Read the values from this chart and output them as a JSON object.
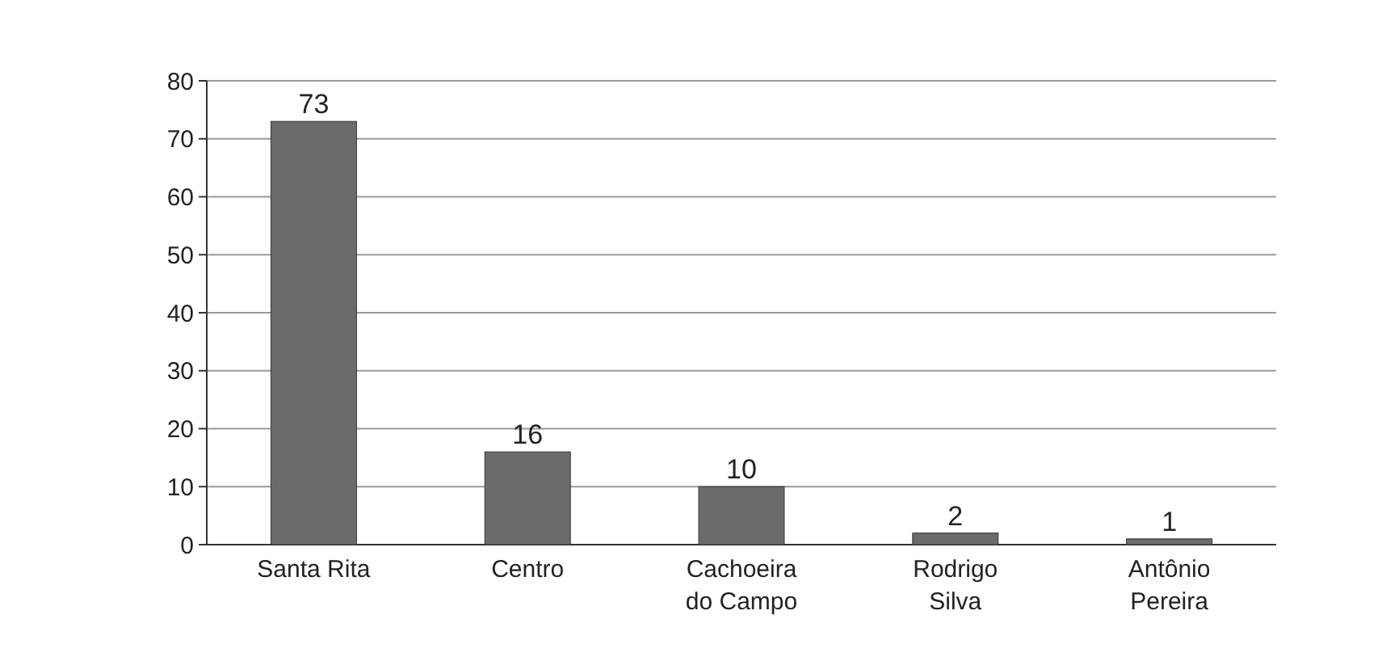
{
  "chart_data": {
    "type": "bar",
    "categories": [
      "Santa Rita",
      "Centro",
      "Cachoeira do Campo",
      "Rodrigo Silva",
      "Antônio Pereira"
    ],
    "values": [
      73,
      16,
      10,
      2,
      1
    ],
    "color": "#6b6b6b",
    "ylim": [
      0,
      80
    ],
    "yticks": [
      0,
      10,
      20,
      30,
      40,
      50,
      60,
      70,
      80
    ],
    "grid": "y",
    "data_labels": true
  }
}
